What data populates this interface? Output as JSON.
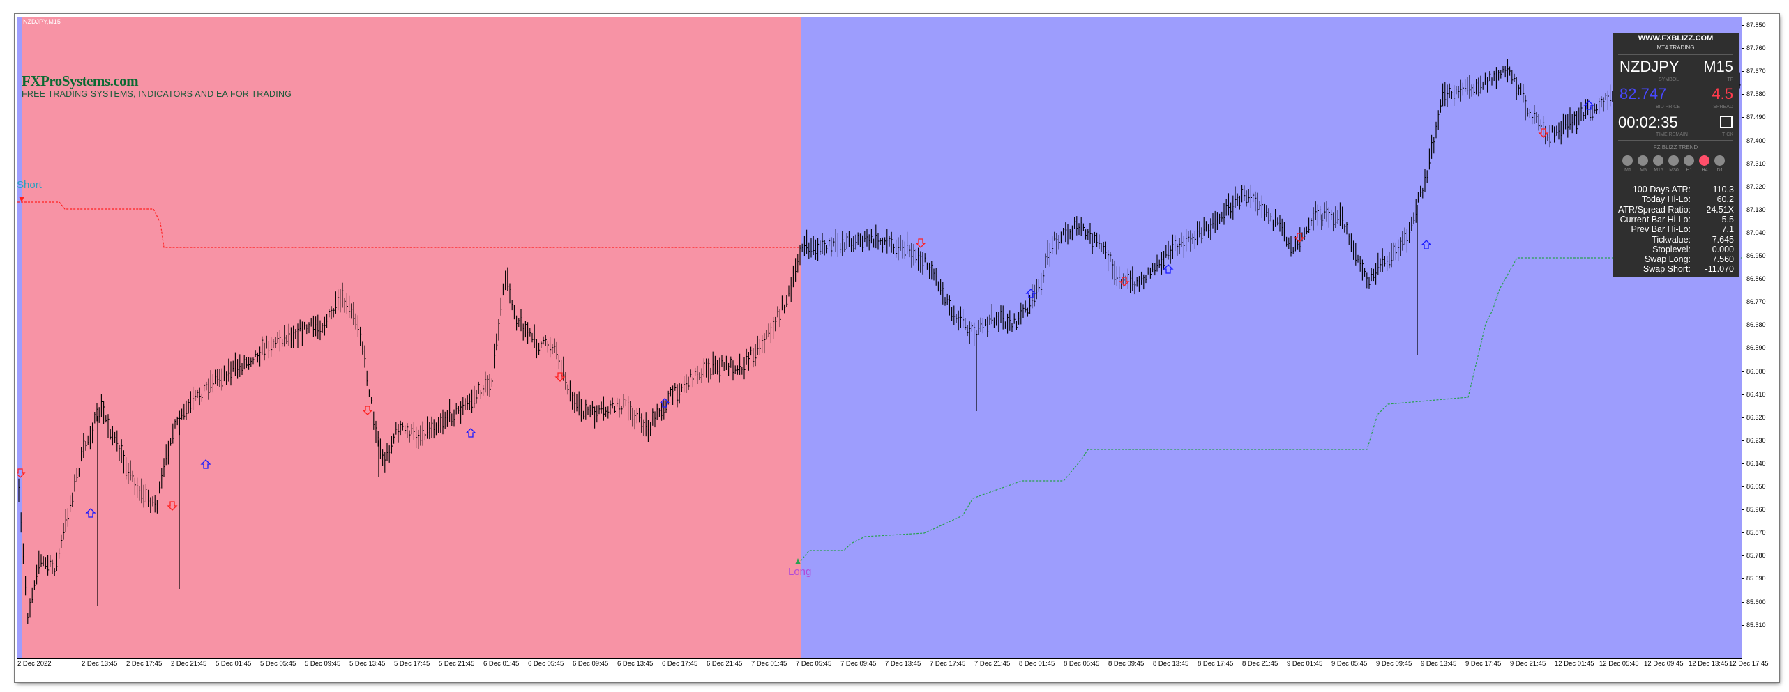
{
  "window": {
    "symbol_label": "NZDJPY,M15",
    "brand": "FXProSystems.com",
    "brand_tagline": "FREE TRADING SYSTEMS, INDICATORS AND EA FOR TRADING",
    "short_label": "Short",
    "long_label": "Long"
  },
  "colors": {
    "short_zone": "#f793a5",
    "long_zone": "#9d9dfd",
    "candles": "#000000",
    "up_arrow": "#1a1aff",
    "down_arrow": "#ff2020",
    "short_stop_line": "#ff2020",
    "long_stop_line": "#2aa050"
  },
  "price_axis": {
    "ticks": [
      "87.850",
      "87.760",
      "87.670",
      "87.580",
      "87.490",
      "87.400",
      "87.310",
      "87.220",
      "87.130",
      "87.040",
      "86.950",
      "86.860",
      "86.770",
      "86.680",
      "86.590",
      "86.500",
      "86.410",
      "86.320",
      "86.230",
      "86.140",
      "86.050",
      "85.960",
      "85.870",
      "85.780",
      "85.690",
      "85.600",
      "85.510"
    ]
  },
  "time_axis": {
    "ticks": [
      "2 Dec 2022",
      "2 Dec 13:45",
      "2 Dec 17:45",
      "2 Dec 21:45",
      "5 Dec 01:45",
      "5 Dec 05:45",
      "5 Dec 09:45",
      "5 Dec 13:45",
      "5 Dec 17:45",
      "5 Dec 21:45",
      "6 Dec 01:45",
      "6 Dec 05:45",
      "6 Dec 09:45",
      "6 Dec 13:45",
      "6 Dec 17:45",
      "6 Dec 21:45",
      "7 Dec 01:45",
      "7 Dec 05:45",
      "7 Dec 09:45",
      "7 Dec 13:45",
      "7 Dec 17:45",
      "7 Dec 21:45",
      "8 Dec 01:45",
      "8 Dec 05:45",
      "8 Dec 09:45",
      "8 Dec 13:45",
      "8 Dec 17:45",
      "8 Dec 21:45",
      "9 Dec 01:45",
      "9 Dec 05:45",
      "9 Dec 09:45",
      "9 Dec 13:45",
      "9 Dec 17:45",
      "9 Dec 21:45",
      "12 Dec 01:45",
      "12 Dec 05:45",
      "12 Dec 09:45",
      "12 Dec 13:45",
      "12 Dec 17:45"
    ]
  },
  "panel": {
    "site": "WWW.FXBLIZZ.COM",
    "subsite": "MT4 TRADING",
    "symbol": "NZDJPY",
    "symbol_caption": "SYMBOL",
    "timeframe": "M15",
    "timeframe_caption": "TF",
    "bid": "82.747",
    "bid_caption": "BID PRICE",
    "spread": "4.5",
    "spread_caption": "SPREAD",
    "timer": "00:02:35",
    "timer_caption": "TIME REMAIN",
    "tick_caption": "TICK",
    "trend_title": "FZ BLIZZ TREND",
    "trend_dots": [
      {
        "label": "M1",
        "color": "#8a8a8a"
      },
      {
        "label": "M5",
        "color": "#8a8a8a"
      },
      {
        "label": "M15",
        "color": "#8a8a8a"
      },
      {
        "label": "M30",
        "color": "#8a8a8a"
      },
      {
        "label": "H1",
        "color": "#8a8a8a"
      },
      {
        "label": "H4",
        "color": "#ff4f6a"
      },
      {
        "label": "D1",
        "color": "#8a8a8a"
      }
    ],
    "stats": [
      {
        "label": "100 Days ATR:",
        "value": "110.3"
      },
      {
        "label": "Today Hi-Lo:",
        "value": "60.2"
      },
      {
        "label": "ATR/Spread Ratio:",
        "value": "24.51X"
      },
      {
        "label": "Current Bar Hi-Lo:",
        "value": "5.5"
      },
      {
        "label": "Prev Bar Hi-Lo:",
        "value": "7.1"
      },
      {
        "label": "Tickvalue:",
        "value": "7.645"
      },
      {
        "label": "Stoplevel:",
        "value": "0.000"
      },
      {
        "label": "Swap Long:",
        "value": "7.560"
      },
      {
        "label": "Swap Short:",
        "value": "-11.070"
      }
    ]
  }
}
